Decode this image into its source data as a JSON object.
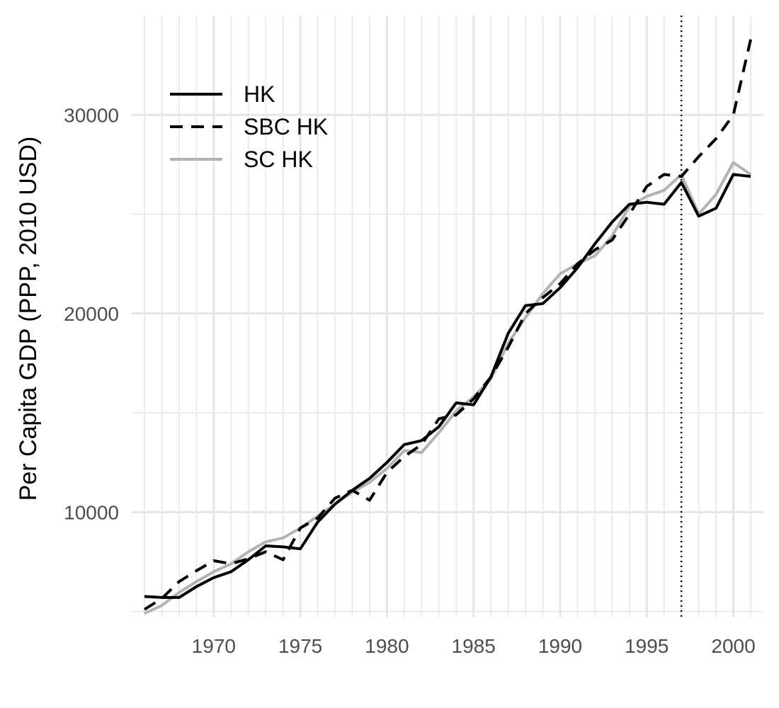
{
  "chart_data": {
    "type": "line",
    "title": "",
    "xlabel": "",
    "ylabel": "Per Capita GDP (PPP, 2010 USD)",
    "xlim": [
      1966.0,
      2001.0
    ],
    "ylim": [
      4700,
      35000
    ],
    "x_ticks": [
      1970,
      1975,
      1980,
      1985,
      1990,
      1995,
      2000
    ],
    "x_minor_ticks": [
      1966,
      1967,
      1968,
      1969,
      1970,
      1971,
      1972,
      1973,
      1974,
      1975,
      1976,
      1977,
      1978,
      1979,
      1980,
      1981,
      1982,
      1983,
      1984,
      1985,
      1986,
      1987,
      1988,
      1989,
      1990,
      1991,
      1992,
      1993,
      1994,
      1995,
      1996,
      1997,
      1998,
      1999,
      2000,
      2001
    ],
    "y_ticks": [
      10000,
      20000,
      30000
    ],
    "y_minor_ticks": [
      5000,
      15000,
      25000
    ],
    "grid": true,
    "vline": {
      "x": 1997,
      "style": "dotted"
    },
    "legend_position": "top-left",
    "series": [
      {
        "name": "HK",
        "color": "#000000",
        "style": "solid",
        "x": [
          1966,
          1967,
          1968,
          1969,
          1970,
          1971,
          1972,
          1973,
          1974,
          1975,
          1976,
          1977,
          1978,
          1979,
          1980,
          1981,
          1982,
          1983,
          1984,
          1985,
          1986,
          1987,
          1988,
          1989,
          1990,
          1991,
          1992,
          1993,
          1994,
          1995,
          1996,
          1997,
          1998,
          1999,
          2000,
          2001
        ],
        "y": [
          5750,
          5700,
          5700,
          6250,
          6700,
          7000,
          7600,
          8300,
          8250,
          8150,
          9500,
          10400,
          11100,
          11700,
          12500,
          13400,
          13600,
          14300,
          15500,
          15400,
          16800,
          19000,
          20400,
          20500,
          21300,
          22300,
          23500,
          24600,
          25500,
          25600,
          25500,
          26600,
          24900,
          25300,
          27000,
          26900
        ]
      },
      {
        "name": "SBC HK",
        "color": "#000000",
        "style": "dashed",
        "x": [
          1966,
          1967,
          1968,
          1969,
          1970,
          1971,
          1972,
          1973,
          1974,
          1975,
          1976,
          1977,
          1978,
          1979,
          1980,
          1981,
          1982,
          1983,
          1984,
          1985,
          1986,
          1987,
          1988,
          1989,
          1990,
          1991,
          1992,
          1993,
          1994,
          1995,
          1996,
          1997,
          1998,
          1999,
          2000,
          2001
        ],
        "y": [
          5100,
          5650,
          6500,
          7050,
          7550,
          7400,
          7650,
          8000,
          7600,
          9200,
          9700,
          10700,
          11100,
          10600,
          12000,
          12800,
          13400,
          14700,
          14900,
          15700,
          16800,
          18300,
          20000,
          20800,
          21500,
          22500,
          23200,
          23700,
          25000,
          26400,
          27000,
          26900,
          27900,
          28800,
          30000,
          33800
        ]
      },
      {
        "name": "SC HK",
        "color": "#b3b3b3",
        "style": "solid",
        "x": [
          1966,
          1967,
          1968,
          1969,
          1970,
          1971,
          1972,
          1973,
          1974,
          1975,
          1976,
          1977,
          1978,
          1979,
          1980,
          1981,
          1982,
          1983,
          1984,
          1985,
          1986,
          1987,
          1988,
          1989,
          1990,
          1991,
          1992,
          1993,
          1994,
          1995,
          1996,
          1997,
          1998,
          1999,
          2000,
          2001
        ],
        "y": [
          4900,
          5300,
          5950,
          6500,
          7000,
          7400,
          8000,
          8500,
          8700,
          9200,
          9800,
          10400,
          11000,
          11500,
          12200,
          13100,
          13000,
          14000,
          15100,
          15800,
          16700,
          18500,
          19800,
          21000,
          22000,
          22500,
          22900,
          23900,
          25400,
          25900,
          26200,
          27000,
          25000,
          26000,
          27600,
          27000
        ]
      }
    ]
  }
}
